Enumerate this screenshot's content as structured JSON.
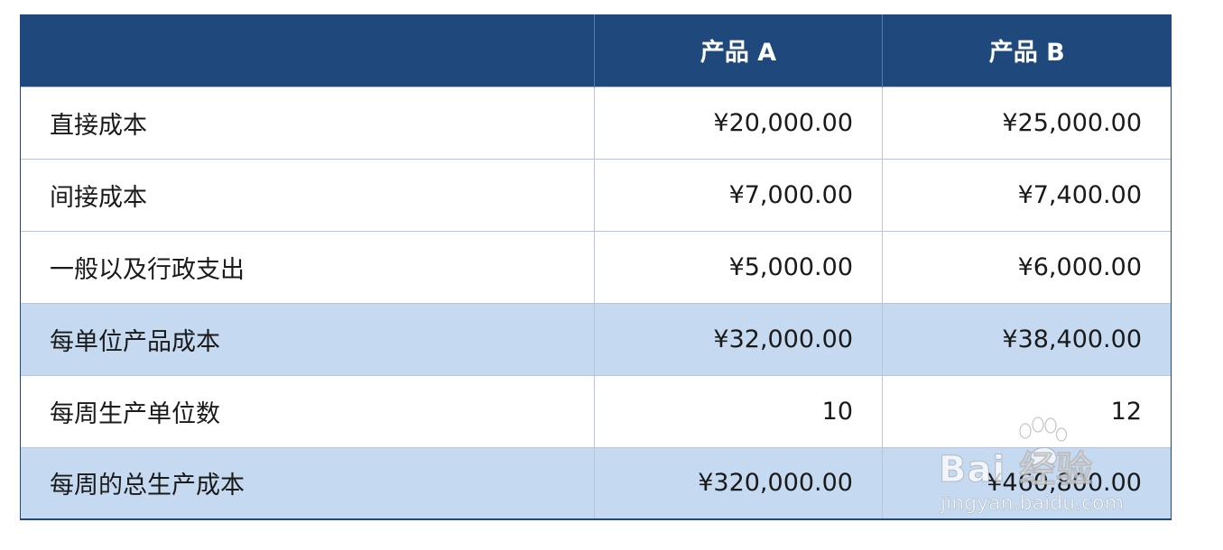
{
  "table": {
    "headers": [
      "",
      "产品 A",
      "产品 B"
    ],
    "rows": [
      {
        "label": "直接成本",
        "a": "¥20,000.00",
        "b": "¥25,000.00",
        "shaded": false
      },
      {
        "label": "间接成本",
        "a": "¥7,000.00",
        "b": "¥7,400.00",
        "shaded": false
      },
      {
        "label": "一般以及行政支出",
        "a": "¥5,000.00",
        "b": "¥6,000.00",
        "shaded": false
      },
      {
        "label": "每单位产品成本",
        "a": "¥32,000.00",
        "b": "¥38,400.00",
        "shaded": true
      },
      {
        "label": "每周生产单位数",
        "a": "10",
        "b": "12",
        "shaded": false
      },
      {
        "label": "每周的总生产成本",
        "a": "¥320,000.00",
        "b": "¥460,800.00",
        "shaded": true
      }
    ]
  },
  "watermark": {
    "brand": "Bai  经验",
    "url": "jingyan.baidu.com",
    "icon": "paw-icon"
  },
  "colors": {
    "header_bg": "#1f497d",
    "header_text": "#ffffff",
    "shaded_row": "#c5d9f1",
    "plain_row": "#ffffff"
  }
}
